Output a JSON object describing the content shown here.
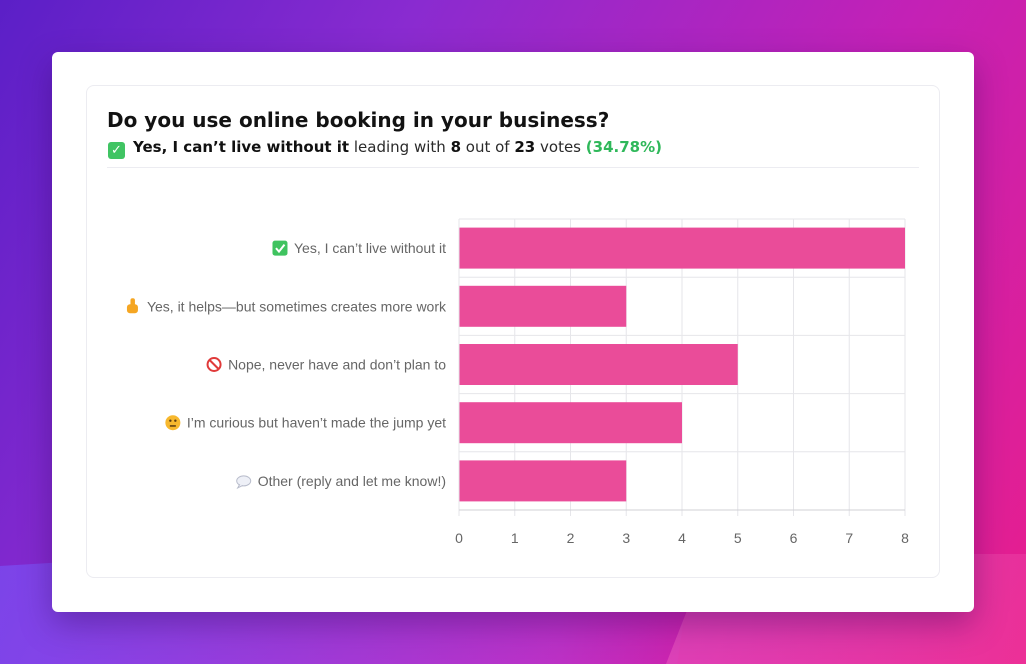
{
  "poll": {
    "question": "Do you use online booking in your business?",
    "leader_label": "Yes, I can’t live without it",
    "leading_with_text": "leading with",
    "leader_votes": "8",
    "out_of_text": "out of",
    "total_votes": "23",
    "votes_text": "votes",
    "leader_percent": "(34.78%)",
    "check_glyph": "✓"
  },
  "colors": {
    "bar": "#ea4c99",
    "grid": "#e6e6ea",
    "axis_text": "#666666",
    "accent_green": "#2fb85a"
  },
  "chart_data": {
    "type": "bar",
    "orientation": "horizontal",
    "categories": [
      "Yes, I can’t live without it",
      "Yes, it helps—but sometimes creates more work",
      "Nope, never have and don’t plan to",
      "I’m curious but haven’t made the jump yet",
      "Other (reply and let me know!)"
    ],
    "category_icons": [
      "check-box-icon",
      "thumbs-up-icon",
      "prohibited-icon",
      "thinking-face-icon",
      "speech-bubble-icon"
    ],
    "values": [
      8,
      3,
      5,
      4,
      3
    ],
    "xlim": [
      0,
      8
    ],
    "xticks": [
      "0",
      "1",
      "2",
      "3",
      "4",
      "5",
      "6",
      "7",
      "8"
    ],
    "grid": true,
    "legend": "none"
  }
}
